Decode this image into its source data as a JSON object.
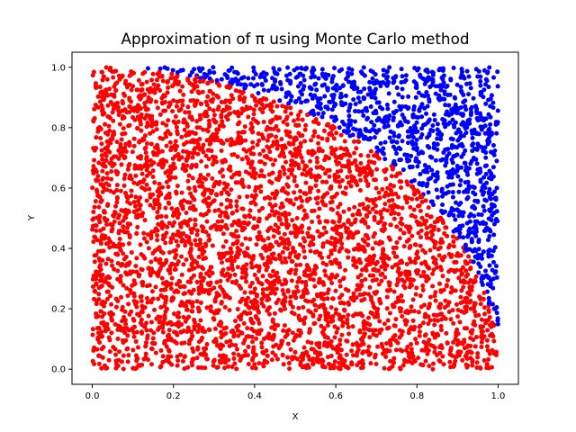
{
  "chart_data": {
    "type": "scatter",
    "title": "Approximation of π using Monte Carlo method",
    "xlabel": "X",
    "ylabel": "Y",
    "xlim": [
      -0.05,
      1.05
    ],
    "ylim": [
      -0.05,
      1.05
    ],
    "xticks": [
      "0.0",
      "0.2",
      "0.4",
      "0.6",
      "0.8",
      "1.0"
    ],
    "yticks": [
      "0.0",
      "0.2",
      "0.4",
      "0.6",
      "0.8",
      "1.0"
    ],
    "grid": false,
    "legend": "none",
    "num_points": 5000,
    "series": [
      {
        "condition": "x² + y² ≤ 1",
        "color": "#ff0000"
      },
      {
        "condition": "x² + y² > 1",
        "color": "#0000ff"
      }
    ]
  }
}
